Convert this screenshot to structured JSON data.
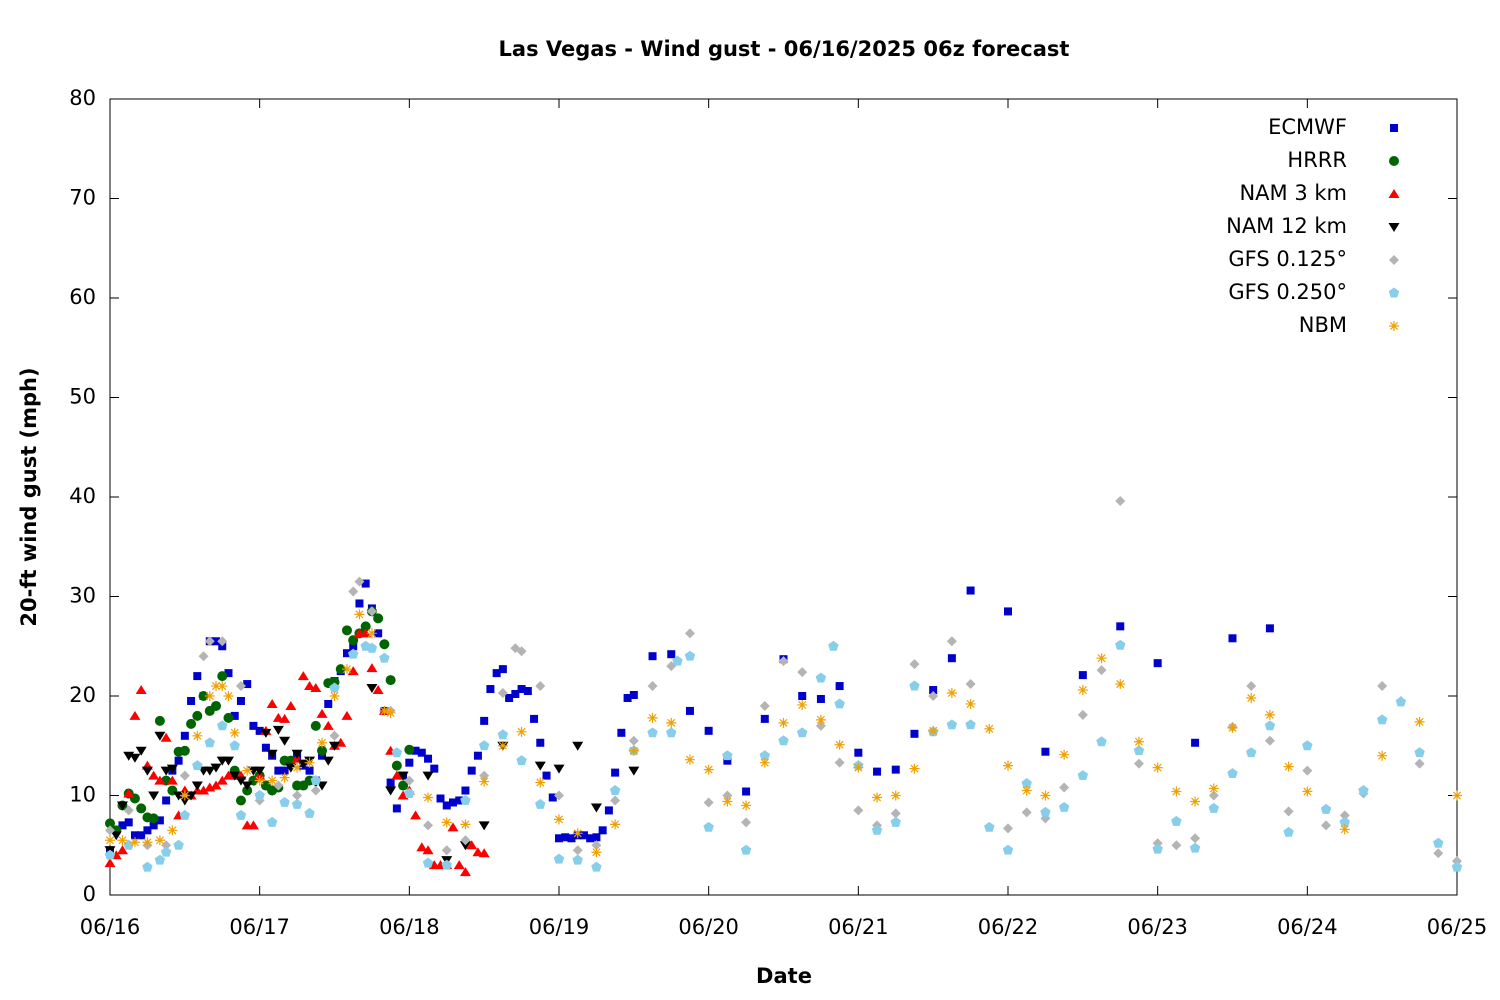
{
  "chart_data": {
    "type": "scatter",
    "title": "Las Vegas - Wind gust - 06/16/2025 06z forecast",
    "x_label": "Date",
    "y_label": "20-ft wind gust (mph)",
    "xlim": [
      0,
      216
    ],
    "xticks": [
      {
        "value": 0,
        "label": "06/16"
      },
      {
        "value": 24,
        "label": "06/17"
      },
      {
        "value": 48,
        "label": "06/18"
      },
      {
        "value": 72,
        "label": "06/19"
      },
      {
        "value": 96,
        "label": "06/20"
      },
      {
        "value": 120,
        "label": "06/21"
      },
      {
        "value": 144,
        "label": "06/22"
      },
      {
        "value": 168,
        "label": "06/23"
      },
      {
        "value": 192,
        "label": "06/24"
      },
      {
        "value": 216,
        "label": "06/25"
      }
    ],
    "ylim": [
      0,
      80
    ],
    "yticks": [
      0,
      10,
      20,
      30,
      40,
      50,
      60,
      70,
      80
    ],
    "legend": "upper right",
    "series": [
      {
        "name": "ECMWF",
        "color": "#0000cc",
        "marker": "square",
        "x": [
          0,
          1,
          2,
          3,
          4,
          5,
          6,
          7,
          8,
          9,
          10,
          11,
          12,
          13,
          14,
          15,
          16,
          17,
          18,
          19,
          20,
          21,
          22,
          23,
          24,
          25,
          26,
          27,
          28,
          29,
          30,
          31,
          32,
          33,
          34,
          35,
          36,
          37,
          38,
          39,
          40,
          41,
          42,
          43,
          44,
          45,
          46,
          47,
          48,
          49,
          50,
          51,
          52,
          53,
          54,
          55,
          56,
          57,
          58,
          59,
          60,
          61,
          62,
          63,
          64,
          65,
          66,
          67,
          68,
          69,
          70,
          71,
          72,
          73,
          74,
          75,
          76,
          77,
          78,
          79,
          80,
          81,
          82,
          83,
          84,
          87,
          90,
          93,
          96,
          99,
          102,
          105,
          108,
          111,
          114,
          117,
          120,
          123,
          126,
          129,
          132,
          135,
          138,
          144,
          150,
          156,
          162,
          168,
          174,
          180,
          186
        ],
        "values": [
          4.5,
          6.5,
          7,
          7.3,
          6,
          6,
          6.5,
          7,
          7.5,
          9.5,
          12.5,
          13.5,
          16,
          19.5,
          22,
          20,
          25.5,
          25.5,
          25,
          22.3,
          18,
          19.5,
          21.2,
          17,
          16.5,
          14.8,
          14,
          12.5,
          12.5,
          13.5,
          14,
          13,
          12.5,
          11.5,
          14,
          19.2,
          21.5,
          22.5,
          24.3,
          25,
          29.3,
          31.3,
          28.8,
          26.3,
          18.5,
          11.3,
          8.7,
          12,
          13.3,
          14.5,
          14.3,
          13.7,
          12.7,
          9.7,
          9,
          9.3,
          9.5,
          10.5,
          12.5,
          14,
          17.5,
          20.7,
          22.3,
          22.7,
          19.8,
          20.2,
          20.7,
          20.5,
          17.7,
          15.3,
          12,
          9.8,
          5.7,
          5.8,
          5.7,
          6,
          6,
          5.7,
          5.8,
          6.5,
          8.5,
          12.3,
          16.3,
          19.8,
          20.1,
          24,
          24.2,
          18.5,
          16.5,
          13.5,
          10.4,
          17.7,
          23.7,
          20,
          19.7,
          21,
          14.3,
          12.4,
          12.6,
          16.2,
          20.6,
          23.8,
          30.6,
          28.5,
          14.4,
          22.1,
          27,
          23.3,
          15.3,
          25.8,
          26.8
        ]
      },
      {
        "name": "HRRR",
        "color": "#006400",
        "marker": "circle",
        "x": [
          0,
          1,
          2,
          3,
          4,
          5,
          6,
          7,
          8,
          9,
          10,
          11,
          12,
          13,
          14,
          15,
          16,
          17,
          18,
          19,
          20,
          21,
          22,
          23,
          24,
          25,
          26,
          27,
          28,
          29,
          30,
          31,
          32,
          33,
          34,
          35,
          36,
          37,
          38,
          39,
          40,
          41,
          42,
          43,
          44,
          45,
          46,
          47,
          48
        ],
        "values": [
          7.2,
          6.5,
          9,
          10.2,
          9.7,
          8.7,
          7.8,
          7.7,
          17.5,
          11.5,
          10.5,
          14.4,
          14.5,
          17.2,
          18,
          20,
          18.5,
          19,
          22,
          17.8,
          12.5,
          9.5,
          10.5,
          11.5,
          12,
          11,
          10.5,
          10.8,
          13.5,
          13.5,
          11,
          11,
          11.5,
          17,
          14.5,
          21.3,
          21.4,
          22.7,
          26.6,
          25.6,
          26.3,
          27,
          28.5,
          27.8,
          25.2,
          21.6,
          13,
          11,
          14.6
        ]
      },
      {
        "name": "NAM 3 km",
        "color": "#ff0000",
        "marker": "triangle-up",
        "x": [
          0,
          1,
          2,
          3,
          4,
          5,
          6,
          7,
          8,
          9,
          10,
          11,
          12,
          13,
          14,
          15,
          16,
          17,
          18,
          19,
          20,
          21,
          22,
          23,
          24,
          25,
          26,
          27,
          28,
          29,
          30,
          31,
          32,
          33,
          34,
          35,
          36,
          37,
          38,
          39,
          40,
          41,
          42,
          43,
          44,
          45,
          46,
          47,
          48,
          49,
          50,
          51,
          52,
          53,
          54,
          55,
          56,
          57,
          58,
          59,
          60
        ],
        "values": [
          3.2,
          4,
          4.5,
          10.2,
          18,
          20.6,
          13,
          12,
          11.5,
          15.8,
          11.5,
          8,
          10.5,
          10,
          10.5,
          10.5,
          10.8,
          11,
          11.5,
          12,
          12,
          12,
          7,
          7,
          12,
          16.5,
          19.2,
          17.8,
          17.7,
          19,
          13.7,
          22,
          21,
          20.8,
          18.2,
          17,
          15,
          15.3,
          18,
          22.5,
          26.3,
          26.3,
          22.8,
          20.6,
          18.5,
          14.5,
          12,
          10,
          10.5,
          8,
          4.8,
          4.5,
          3,
          3,
          3,
          6.8,
          3,
          2.3,
          5,
          4.3,
          4.2
        ]
      },
      {
        "name": "NAM 12 km",
        "color": "#000000",
        "marker": "triangle-down",
        "x": [
          0,
          1,
          2,
          3,
          4,
          5,
          6,
          7,
          8,
          9,
          10,
          11,
          12,
          13,
          14,
          15,
          16,
          17,
          18,
          19,
          20,
          21,
          22,
          23,
          24,
          25,
          26,
          27,
          28,
          29,
          30,
          31,
          32,
          33,
          34,
          35,
          36,
          42,
          45,
          47,
          51,
          54,
          57,
          60,
          63,
          69,
          72,
          75,
          78,
          84
        ],
        "values": [
          4.5,
          6,
          9,
          14,
          13.8,
          14.5,
          12.5,
          10,
          16,
          12.5,
          12.7,
          10,
          9.5,
          10,
          11,
          12.5,
          12.5,
          12.8,
          13.5,
          13.5,
          12,
          11.5,
          11,
          12.5,
          12.5,
          16.3,
          14.2,
          16.6,
          15.5,
          12.8,
          14.2,
          13.2,
          13.5,
          11.3,
          11,
          13.5,
          15,
          20.8,
          10.5,
          12,
          12,
          3.5,
          5,
          7,
          15,
          13,
          12.7,
          15,
          8.8,
          12.5
        ]
      },
      {
        "name": "GFS 0.125°",
        "color": "#b4b4b4",
        "marker": "diamond",
        "x": [
          0,
          3,
          6,
          9,
          12,
          15,
          16,
          18,
          21,
          24,
          27,
          30,
          33,
          36,
          39,
          40,
          42,
          45,
          48,
          51,
          54,
          57,
          60,
          63,
          65,
          66,
          69,
          72,
          75,
          78,
          81,
          84,
          87,
          90,
          93,
          96,
          99,
          102,
          105,
          108,
          111,
          114,
          117,
          120,
          123,
          126,
          129,
          132,
          135,
          138,
          144,
          147,
          150,
          153,
          156,
          159,
          162,
          165,
          168,
          171,
          174,
          177,
          180,
          183,
          186,
          189,
          192,
          195,
          198,
          201,
          204,
          207,
          210,
          213,
          216
        ],
        "values": [
          6.5,
          8.5,
          5,
          5,
          12,
          24,
          25.5,
          25.5,
          21,
          9.5,
          11,
          10,
          10.5,
          16,
          30.5,
          31.5,
          28.5,
          18.5,
          11.5,
          7,
          4.5,
          5.5,
          12,
          20.3,
          24.8,
          24.5,
          21,
          10,
          4.5,
          5,
          9.5,
          15.5,
          21,
          23,
          26.3,
          9.3,
          10,
          7.3,
          19,
          23.5,
          22.4,
          17,
          13.3,
          8.5,
          7,
          8.2,
          23.2,
          20,
          25.5,
          21.2,
          6.7,
          8.3,
          7.7,
          10.8,
          18.1,
          22.6,
          39.6,
          13.2,
          5.2,
          5,
          5.7,
          10,
          16.9,
          21,
          15.5,
          8.4,
          12.5,
          7,
          8,
          10.2,
          21,
          19.5,
          13.2,
          4.2,
          3.4
        ]
      },
      {
        "name": "GFS 0.250°",
        "color": "#87ceeb",
        "marker": "pentagon",
        "x": [
          0,
          3,
          6,
          8,
          9,
          11,
          12,
          14,
          16,
          18,
          20,
          21,
          24,
          26,
          28,
          30,
          32,
          33,
          36,
          39,
          41,
          42,
          44,
          46,
          48,
          51,
          54,
          57,
          60,
          63,
          66,
          69,
          72,
          75,
          78,
          81,
          84,
          87,
          90,
          91,
          93,
          96,
          99,
          102,
          105,
          108,
          111,
          114,
          116,
          117,
          120,
          123,
          126,
          129,
          132,
          135,
          138,
          141,
          144,
          147,
          150,
          153,
          156,
          159,
          162,
          165,
          168,
          171,
          174,
          177,
          180,
          183,
          186,
          189,
          192,
          195,
          198,
          201,
          204,
          207,
          210,
          213,
          216
        ],
        "values": [
          4,
          5,
          2.8,
          3.5,
          4.3,
          5,
          8,
          13,
          15.3,
          17,
          15,
          8,
          10,
          7.3,
          9.3,
          9.1,
          8.2,
          11.5,
          20.8,
          24.2,
          25,
          24.8,
          23.8,
          14.3,
          10.2,
          3.2,
          3,
          9.5,
          15,
          16.1,
          13.5,
          9.1,
          3.6,
          3.5,
          2.8,
          10.5,
          14.5,
          16.3,
          16.3,
          23.5,
          24,
          6.8,
          14,
          4.5,
          14,
          15.5,
          16.3,
          21.8,
          25,
          19.2,
          13,
          6.5,
          7.3,
          21,
          16.4,
          17.1,
          17.1,
          6.8,
          4.5,
          11.2,
          8.3,
          8.8,
          12,
          15.4,
          25.1,
          14.5,
          4.6,
          7.4,
          4.7,
          8.7,
          12.2,
          14.3,
          17,
          6.3,
          15,
          8.6,
          7.3,
          10.5,
          17.6,
          19.4,
          14.3,
          5.2,
          2.8
        ]
      },
      {
        "name": "NBM",
        "color": "#f0a000",
        "marker": "asterisk",
        "x": [
          0,
          2,
          4,
          6,
          8,
          10,
          12,
          14,
          16,
          17,
          18,
          19,
          20,
          22,
          24,
          26,
          28,
          30,
          32,
          34,
          36,
          38,
          40,
          42,
          44,
          45,
          51,
          54,
          57,
          60,
          63,
          66,
          69,
          72,
          75,
          78,
          81,
          84,
          87,
          90,
          93,
          96,
          99,
          102,
          105,
          108,
          111,
          114,
          117,
          120,
          123,
          126,
          129,
          132,
          135,
          138,
          141,
          144,
          147,
          150,
          153,
          156,
          159,
          162,
          165,
          168,
          171,
          174,
          177,
          180,
          183,
          186,
          189,
          192,
          198,
          204,
          210,
          216
        ],
        "values": [
          5.5,
          5.5,
          5.3,
          5.3,
          5.5,
          6.5,
          10,
          16,
          20,
          21,
          21,
          20,
          16.3,
          12.5,
          11.5,
          11.5,
          11.8,
          12.8,
          13.3,
          15.3,
          20,
          22.7,
          28.2,
          26.3,
          18.5,
          18.3,
          9.8,
          7.3,
          7.1,
          11.4,
          15,
          16.4,
          11.3,
          7.6,
          6.2,
          4.3,
          7.1,
          14.5,
          17.8,
          17.3,
          13.6,
          12.6,
          9.4,
          9,
          13.3,
          17.3,
          19.1,
          17.6,
          15.1,
          12.8,
          9.8,
          10,
          12.7,
          16.5,
          20.3,
          19.2,
          16.7,
          13,
          10.5,
          10,
          14.1,
          20.6,
          23.8,
          21.2,
          15.4,
          12.8,
          10.4,
          9.4,
          10.7,
          16.8,
          19.8,
          18.1,
          12.9,
          10.4,
          6.6,
          14,
          17.4,
          10
        ]
      }
    ]
  }
}
